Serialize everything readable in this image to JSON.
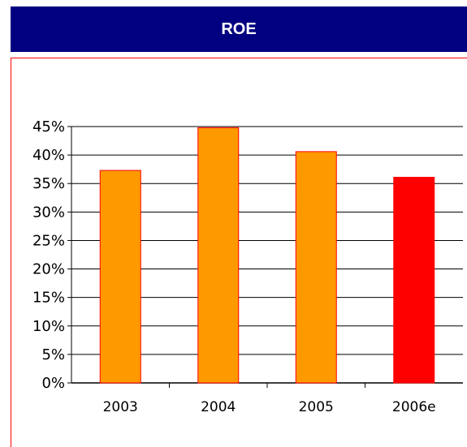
{
  "chart_data": {
    "type": "bar",
    "title": "ROE",
    "categories": [
      "2003",
      "2004",
      "2005",
      "2006e"
    ],
    "values": [
      37.3,
      44.8,
      40.6,
      36.1
    ],
    "bar_colors": [
      "#ff9900",
      "#ff9900",
      "#ff9900",
      "#ff0000"
    ],
    "bar_border_color": "#ff0000",
    "yticks": [
      "0%",
      "5%",
      "10%",
      "15%",
      "20%",
      "25%",
      "30%",
      "35%",
      "40%",
      "45%"
    ],
    "ylim": [
      0,
      45
    ],
    "y_step": 5,
    "xlabel": "",
    "ylabel": "",
    "grid": true,
    "legend": "none"
  },
  "colors": {
    "title_bar": "#000080",
    "title_text": "#ffffff",
    "frame_border": "#ff0000"
  }
}
